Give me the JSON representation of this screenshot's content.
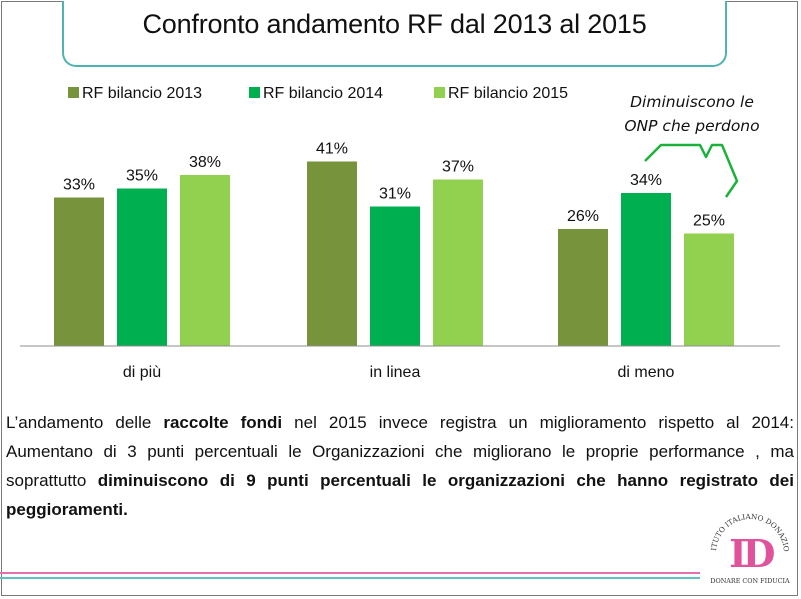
{
  "title": "Confronto andamento RF dal 2013 al 2015",
  "chart_data": {
    "type": "bar",
    "categories": [
      "di più",
      "in linea",
      "di meno"
    ],
    "series": [
      {
        "name": "RF bilancio 2013",
        "values": [
          33,
          41,
          26
        ],
        "color": "#77933c"
      },
      {
        "name": "RF bilancio 2014",
        "values": [
          35,
          31,
          34
        ],
        "color": "#00b050"
      },
      {
        "name": "RF bilancio 2015",
        "values": [
          38,
          37,
          25
        ],
        "color": "#92d050"
      }
    ],
    "value_labels": [
      [
        "33%",
        "41%",
        "26%"
      ],
      [
        "35%",
        "31%",
        "34%"
      ],
      [
        "38%",
        "37%",
        "25%"
      ]
    ],
    "legend_position": "top",
    "grid": false,
    "ylim": [
      0,
      45
    ],
    "annotation": {
      "line1": "Diminuiscono le",
      "line2": "ONP che perdono"
    }
  },
  "text": {
    "s1": "L’andamento delle ",
    "s1b": "raccolte fondi",
    "s2": " nel 2015 invece registra un miglioramento rispetto al 2014: Aumentano di 3 punti percentuali le Organizzazioni che migliorano le proprie performance , ma soprattutto ",
    "s2b": "diminuiscono di 9 punti percentuali le organizzazioni che hanno registrato dei peggioramenti."
  },
  "logo": {
    "arc_text": "ISTITUTO ITALIANO DONAZIONE",
    "monogram": "ID",
    "tagline": "DONARE CON FIDUCIA",
    "color_pink": "#e0529c",
    "color_teal": "#3aa6a6"
  },
  "decor": {
    "pink": "#e26fb0",
    "teal": "#5fc1c1",
    "callout": "#1cb23a"
  }
}
